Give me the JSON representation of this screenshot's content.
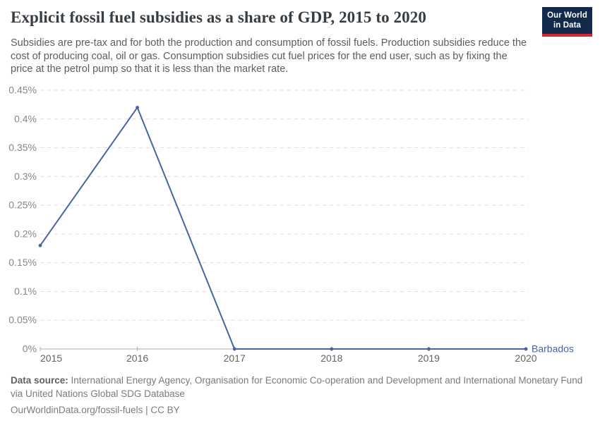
{
  "header": {
    "title": "Explicit fossil fuel subsidies as a share of GDP, 2015 to 2020",
    "subtitle": "Subsidies are pre-tax and for both the production and consumption of fossil fuels. Production subsidies reduce the cost of producing coal, oil or gas. Consumption subsidies cut fuel prices for the end user, such as by fixing the price at the petrol pump so that it is less than the market rate.",
    "logo": {
      "line1": "Our World",
      "line2": "in Data"
    }
  },
  "chart_data": {
    "type": "line",
    "title": "Explicit fossil fuel subsidies as a share of GDP, 2015 to 2020",
    "x": [
      2015,
      2016,
      2017,
      2018,
      2019,
      2020
    ],
    "x_tick_labels": [
      "2015",
      "2016",
      "2017",
      "2018",
      "2019",
      "2020"
    ],
    "series": [
      {
        "name": "Barbados",
        "values": [
          0.18,
          0.42,
          0,
          0,
          0,
          0
        ],
        "color": "#4665a2"
      }
    ],
    "unit": "%",
    "ylim": [
      0,
      0.45
    ],
    "y_ticks": [
      0,
      0.05,
      0.1,
      0.15,
      0.2,
      0.25,
      0.3,
      0.35,
      0.4,
      0.45
    ],
    "y_tick_labels": [
      "0%",
      "0.05%",
      "0.1%",
      "0.15%",
      "0.2%",
      "0.25%",
      "0.3%",
      "0.35%",
      "0.4%",
      "0.45%"
    ],
    "grid": "horizontal-dashed",
    "legend_position": "line-end-label"
  },
  "footer": {
    "datasource_label": "Data source:",
    "datasource_text": " International Energy Agency, Organisation for Economic Co-operation and Development and International Monetary Fund via United Nations Global SDG Database",
    "license_line": "OurWorldinData.org/fossil-fuels | CC BY"
  },
  "colors": {
    "line": "#4665a2",
    "gridline": "#dcdcdc",
    "axis": "#adadad",
    "logo_bg": "#12294b",
    "logo_stripe": "#cf2b33"
  }
}
